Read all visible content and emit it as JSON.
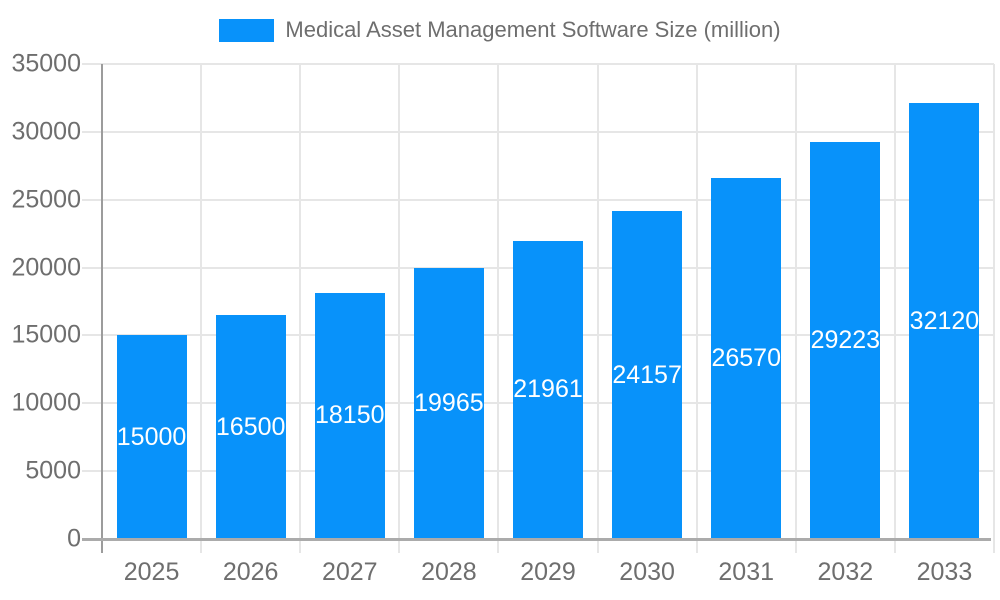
{
  "legend": {
    "label": "Medical Asset Management Software Size (million)"
  },
  "chart_data": {
    "type": "bar",
    "title": "Medical Asset Management Software Size (million)",
    "categories": [
      "2025",
      "2026",
      "2027",
      "2028",
      "2029",
      "2030",
      "2031",
      "2032",
      "2033"
    ],
    "values": [
      15000,
      16500,
      18150,
      19965,
      21961,
      24157,
      26570,
      29223,
      32120
    ],
    "value_labels": [
      "15000",
      "16500",
      "18150",
      "19965",
      "21961",
      "24157",
      "26570",
      "29223",
      "32120"
    ],
    "xlabel": "",
    "ylabel": "",
    "ylim": [
      0,
      35000
    ],
    "yticks": [
      0,
      5000,
      10000,
      15000,
      20000,
      25000,
      30000,
      35000
    ],
    "ytick_labels": [
      "0",
      "5000",
      "10000",
      "15000",
      "20000",
      "25000",
      "30000",
      "35000"
    ],
    "grid": true,
    "legend_position": "top-center",
    "bar_color": "#0892fa",
    "value_label_color": "#ffffff",
    "grid_color": "#e6e6e6",
    "axis_line_color": "#9c9c9c",
    "tick_label_color": "#6e6e6e"
  }
}
